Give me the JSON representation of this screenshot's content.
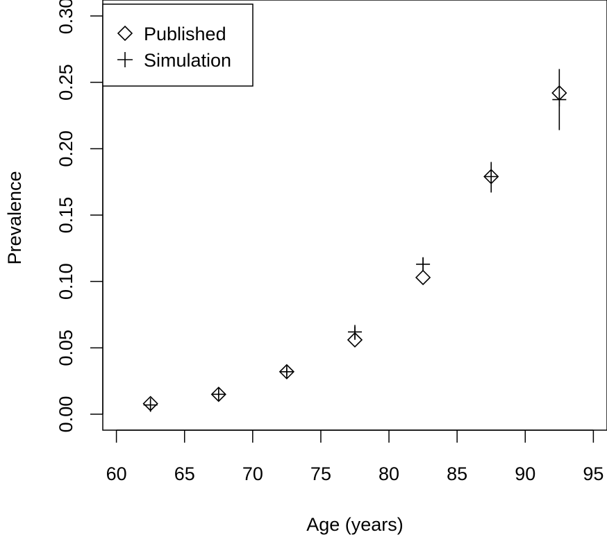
{
  "chart_data": {
    "type": "scatter",
    "xlabel": "Age (years)",
    "ylabel": "Prevalence",
    "xlim": [
      59,
      96
    ],
    "ylim": [
      -0.012,
      0.312
    ],
    "x_ticks": [
      60,
      65,
      70,
      75,
      80,
      85,
      90,
      95
    ],
    "y_ticks": [
      0.0,
      0.05,
      0.1,
      0.15,
      0.2,
      0.25,
      0.3
    ],
    "x_tick_labels": [
      "60",
      "65",
      "70",
      "75",
      "80",
      "85",
      "90",
      "95"
    ],
    "y_tick_labels": [
      "0.00",
      "0.05",
      "0.10",
      "0.15",
      "0.20",
      "0.25",
      "0.30"
    ],
    "grid": false,
    "legend_position": "top-left",
    "series": [
      {
        "name": "Published",
        "marker": "diamond",
        "x": [
          62.5,
          67.5,
          72.5,
          77.5,
          82.5,
          87.5,
          92.5
        ],
        "y": [
          0.008,
          0.015,
          0.032,
          0.056,
          0.103,
          0.179,
          0.242
        ]
      },
      {
        "name": "Simulation",
        "marker": "plus",
        "x": [
          62.5,
          67.5,
          72.5,
          77.5,
          82.5,
          87.5,
          92.5
        ],
        "y": [
          0.007,
          0.015,
          0.032,
          0.062,
          0.113,
          0.179,
          0.237
        ],
        "err_low": [
          0.004,
          0.012,
          0.029,
          0.056,
          0.108,
          0.167,
          0.214
        ],
        "err_high": [
          0.01,
          0.018,
          0.035,
          0.066,
          0.118,
          0.19,
          0.26
        ]
      }
    ]
  }
}
